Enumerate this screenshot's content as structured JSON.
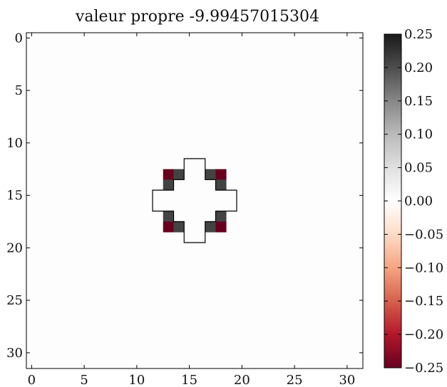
{
  "chart_data": {
    "type": "heatmap",
    "title": "valeur propre -9.99457015304",
    "grid_size": 32,
    "x_ticks": [
      0,
      5,
      10,
      15,
      20,
      25,
      30
    ],
    "y_ticks": [
      0,
      5,
      10,
      15,
      20,
      25,
      30
    ],
    "x_tick_labels": [
      "0",
      "5",
      "10",
      "15",
      "20",
      "25",
      "30"
    ],
    "y_tick_labels": [
      "0",
      "5",
      "10",
      "15",
      "20",
      "25",
      "30"
    ],
    "xlim": [
      -0.5,
      31.5
    ],
    "ylim": [
      31.5,
      -0.5
    ],
    "colorbar": {
      "min": -0.25,
      "max": 0.25,
      "ticks": [
        0.25,
        0.2,
        0.15,
        0.1,
        0.05,
        0.0,
        -0.05,
        -0.1,
        -0.15,
        -0.2,
        -0.25
      ],
      "tick_labels": [
        "0.25",
        "0.20",
        "0.15",
        "0.10",
        "0.05",
        "0.00",
        "−0.05",
        "−0.10",
        "−0.15",
        "−0.20",
        "−0.25"
      ],
      "colormap": "RdGy",
      "stops": [
        {
          "v": -0.25,
          "color": "#67001f"
        },
        {
          "v": -0.2,
          "color": "#b2182b"
        },
        {
          "v": -0.15,
          "color": "#d6604d"
        },
        {
          "v": -0.1,
          "color": "#f4a582"
        },
        {
          "v": -0.05,
          "color": "#fddbc7"
        },
        {
          "v": 0.0,
          "color": "#ffffff"
        },
        {
          "v": 0.05,
          "color": "#e0e0e0"
        },
        {
          "v": 0.1,
          "color": "#bababa"
        },
        {
          "v": 0.15,
          "color": "#878787"
        },
        {
          "v": 0.2,
          "color": "#4d4d4d"
        },
        {
          "v": 0.25,
          "color": "#1a1a1a"
        }
      ]
    },
    "background_value": 0.0,
    "cells": [
      {
        "row": 13,
        "col": 13,
        "value": -0.25
      },
      {
        "row": 13,
        "col": 14,
        "value": 0.21
      },
      {
        "row": 13,
        "col": 17,
        "value": 0.21
      },
      {
        "row": 13,
        "col": 18,
        "value": -0.25
      },
      {
        "row": 14,
        "col": 13,
        "value": 0.21
      },
      {
        "row": 14,
        "col": 18,
        "value": 0.21
      },
      {
        "row": 17,
        "col": 13,
        "value": 0.21
      },
      {
        "row": 17,
        "col": 18,
        "value": 0.21
      },
      {
        "row": 18,
        "col": 13,
        "value": -0.25
      },
      {
        "row": 18,
        "col": 14,
        "value": 0.21
      },
      {
        "row": 18,
        "col": 17,
        "value": 0.21
      },
      {
        "row": 18,
        "col": 18,
        "value": -0.25
      }
    ],
    "contour_outline": [
      [
        14.5,
        11.5
      ],
      [
        16.5,
        11.5
      ],
      [
        16.5,
        13.5
      ],
      [
        17.5,
        13.5
      ],
      [
        17.5,
        14.5
      ],
      [
        19.5,
        14.5
      ],
      [
        19.5,
        16.5
      ],
      [
        17.5,
        16.5
      ],
      [
        17.5,
        17.5
      ],
      [
        16.5,
        17.5
      ],
      [
        16.5,
        19.5
      ],
      [
        14.5,
        19.5
      ],
      [
        14.5,
        17.5
      ],
      [
        13.5,
        17.5
      ],
      [
        13.5,
        16.5
      ],
      [
        11.5,
        16.5
      ],
      [
        11.5,
        14.5
      ],
      [
        13.5,
        14.5
      ],
      [
        13.5,
        13.5
      ],
      [
        14.5,
        13.5
      ]
    ]
  }
}
